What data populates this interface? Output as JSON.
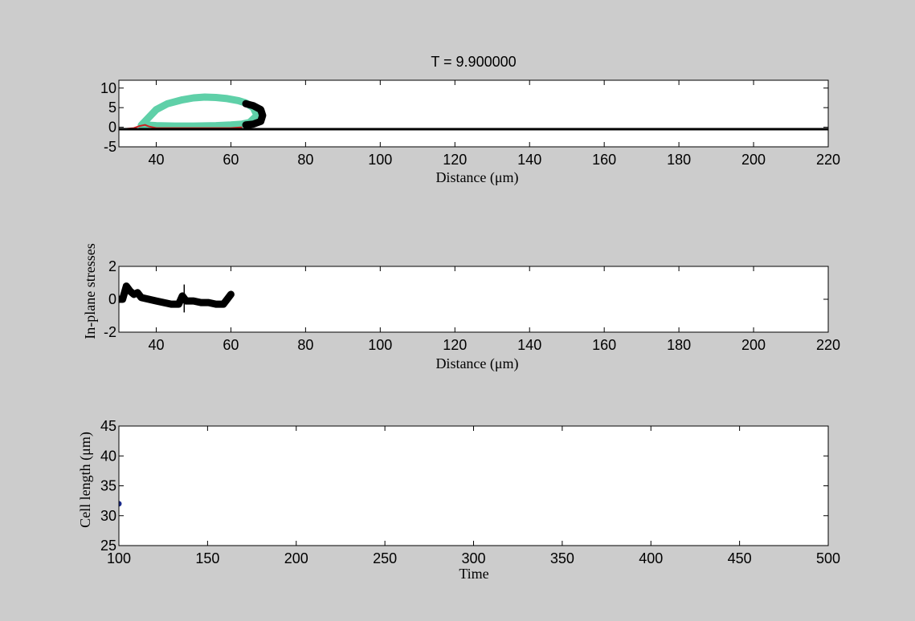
{
  "figure_background": "#cccccc",
  "chart_data": [
    {
      "type": "line",
      "title": "T = 9.900000",
      "xlabel": "Distance (μm)",
      "ylabel": "",
      "xlim": [
        30,
        220
      ],
      "ylim": [
        -5,
        12
      ],
      "xticks": [
        "40",
        "60",
        "80",
        "100",
        "120",
        "140",
        "160",
        "180",
        "200",
        "220"
      ],
      "yticks": [
        "10",
        "5",
        "0",
        "-5"
      ],
      "grid": false,
      "series": [
        {
          "color": "#5fd0a8",
          "style": "thick-markers",
          "x": [
            36,
            38,
            40,
            43,
            47,
            50,
            53,
            56,
            59,
            62,
            64,
            66,
            67,
            65,
            63,
            60,
            56,
            50,
            45,
            40,
            37
          ],
          "y": [
            0.5,
            2.5,
            4.5,
            6,
            7,
            7.5,
            7.7,
            7.6,
            7.3,
            6.8,
            6.2,
            5,
            3,
            1.2,
            0.8,
            0.6,
            0.4,
            0.3,
            0.3,
            0.4,
            0.6
          ]
        },
        {
          "color": "#000000",
          "style": "thick-markers",
          "x": [
            64,
            66,
            68,
            68.5,
            68,
            66,
            64
          ],
          "y": [
            6,
            5.5,
            4.5,
            3,
            1.5,
            0.8,
            0.6
          ]
        },
        {
          "color": "#cc2222",
          "style": "line",
          "x": [
            32,
            34,
            35.5,
            37,
            38,
            40
          ],
          "y": [
            -0.4,
            -0.2,
            0.3,
            0.6,
            0.2,
            -0.2
          ]
        },
        {
          "color": "#cc2222",
          "style": "line",
          "x": [
            40,
            45,
            50,
            55,
            60,
            63
          ],
          "y": [
            -0.2,
            -0.2,
            -0.2,
            -0.2,
            -0.2,
            0
          ]
        },
        {
          "color": "#000000",
          "style": "baseline",
          "x": [
            30,
            220
          ],
          "y": [
            -0.5,
            -0.5
          ]
        }
      ]
    },
    {
      "type": "line",
      "title": "",
      "xlabel": "Distance (μm)",
      "ylabel": "In-plane stresses",
      "xlim": [
        30,
        220
      ],
      "ylim": [
        -2,
        2
      ],
      "xticks": [
        "40",
        "60",
        "80",
        "100",
        "120",
        "140",
        "160",
        "180",
        "200",
        "220"
      ],
      "yticks": [
        "2",
        "0",
        "-2"
      ],
      "grid": false,
      "series": [
        {
          "color": "#000000",
          "style": "thick-markers",
          "x": [
            30,
            31,
            32,
            33,
            34,
            35,
            36,
            38,
            40,
            42,
            44,
            46,
            47,
            48,
            50,
            52,
            54,
            56,
            58,
            59,
            60
          ],
          "y": [
            0,
            0,
            0.8,
            0.5,
            0.3,
            0.4,
            0.1,
            0,
            -0.1,
            -0.2,
            -0.3,
            -0.3,
            0.2,
            -0.1,
            -0.1,
            -0.2,
            -0.2,
            -0.3,
            -0.3,
            0,
            0.3
          ]
        },
        {
          "color": "#000000",
          "style": "spike",
          "x": [
            47.5,
            47.5
          ],
          "y": [
            -0.8,
            0.9
          ]
        }
      ]
    },
    {
      "type": "scatter",
      "title": "",
      "xlabel": "Time",
      "ylabel": "Cell length (μm)",
      "xlim": [
        100,
        500
      ],
      "ylim": [
        25,
        45
      ],
      "xticks": [
        "100",
        "150",
        "200",
        "250",
        "300",
        "350",
        "400",
        "450",
        "500"
      ],
      "yticks": [
        "45",
        "40",
        "35",
        "30",
        "25"
      ],
      "grid": false,
      "series": [
        {
          "color": "#1a2a8a",
          "style": "markers",
          "x": [
            100
          ],
          "y": [
            32
          ]
        }
      ]
    }
  ]
}
